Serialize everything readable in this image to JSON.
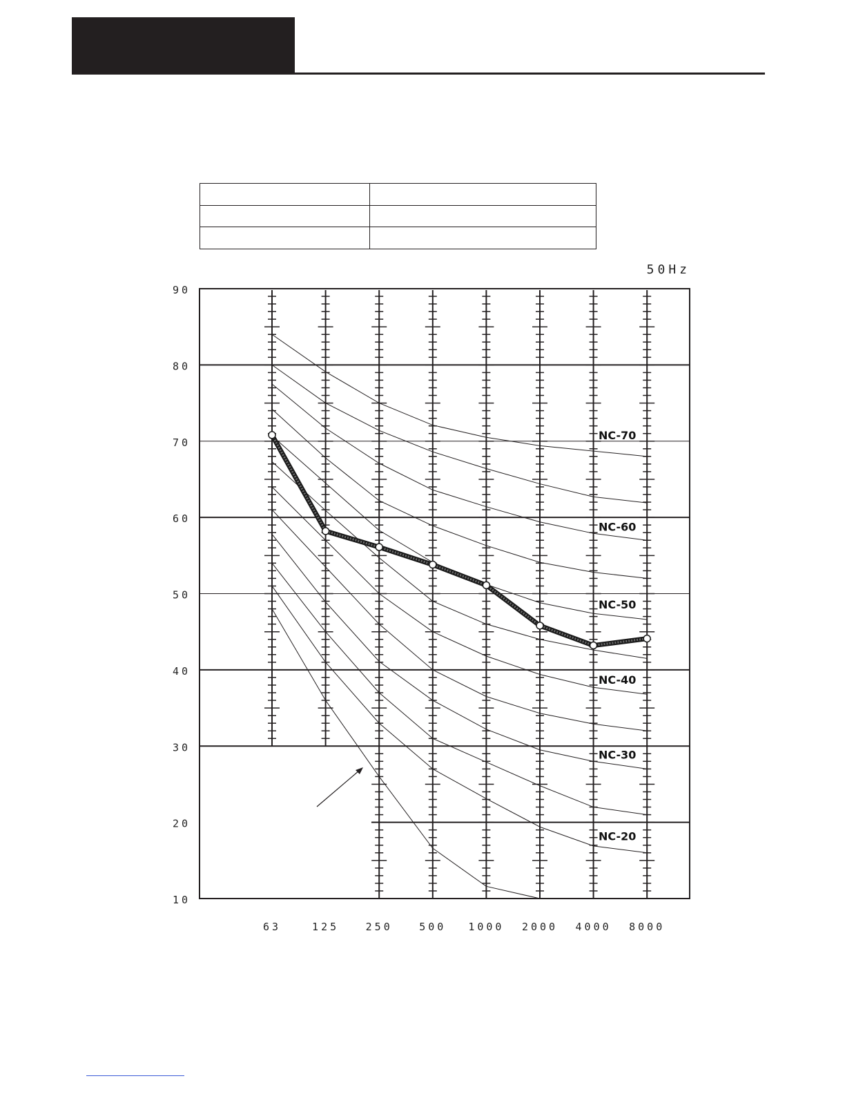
{
  "page": {
    "header_block_color": "#231f20",
    "table": {
      "rows": [
        [
          "",
          ""
        ],
        [
          "",
          ""
        ],
        [
          "",
          ""
        ]
      ]
    },
    "frequency_label": "50Hz"
  },
  "chart_data": {
    "type": "line",
    "title": "",
    "xlabel": "",
    "ylabel": "",
    "ylim": [
      10,
      90
    ],
    "y_ticks": [
      "90",
      "80",
      "70",
      "60",
      "50",
      "40",
      "30",
      "20",
      "10"
    ],
    "categories": [
      "63",
      "125",
      "250",
      "500",
      "1000",
      "2000",
      "4000",
      "8000"
    ],
    "grid": true,
    "series": [
      {
        "values": [
          70.8,
          58.2,
          56.1,
          53.8,
          51.1,
          45.8,
          43.2,
          44.1
        ],
        "color": "#333333",
        "emphasis": true
      }
    ],
    "nc_curves": [
      {
        "values": [
          84,
          79.1,
          75,
          72.1,
          70.5,
          69.4,
          68.7,
          68
        ]
      },
      {
        "values": [
          80,
          75,
          71.4,
          68.6,
          66.4,
          64.4,
          62.7,
          61.9
        ]
      },
      {
        "values": [
          77.5,
          71.7,
          67.1,
          63.6,
          61.4,
          59.4,
          57.9,
          57
        ]
      },
      {
        "values": [
          74.2,
          67.8,
          62.2,
          58.9,
          56.3,
          54.1,
          52.8,
          52
        ]
      },
      {
        "values": [
          70.7,
          64.5,
          58.3,
          54.1,
          51.2,
          48.8,
          47.4,
          46.6
        ]
      },
      {
        "values": [
          67.3,
          60.9,
          54.7,
          49,
          46,
          44,
          42.6,
          41.5
        ]
      },
      {
        "values": [
          64,
          57,
          50,
          45,
          41.8,
          39.4,
          37.7,
          36.8
        ]
      },
      {
        "values": [
          61,
          53.5,
          46,
          40,
          36.5,
          34.3,
          32.9,
          32
        ]
      },
      {
        "values": [
          57.8,
          48.9,
          41.1,
          36,
          32.2,
          29.5,
          28,
          27
        ]
      },
      {
        "values": [
          54,
          45,
          37,
          31,
          27.9,
          24.8,
          22,
          21
        ]
      },
      {
        "values": [
          51,
          41,
          33,
          27,
          23.1,
          19.4,
          16.9,
          16
        ]
      },
      {
        "values": [
          48,
          36,
          26,
          16.6,
          11.6,
          10,
          null,
          null
        ]
      }
    ],
    "nc_labels": [
      {
        "text": "NC-70",
        "y": 70.8
      },
      {
        "text": "NC-60",
        "y": 58.8
      },
      {
        "text": "NC-50",
        "y": 48.6
      },
      {
        "text": "NC-40",
        "y": 38.7
      },
      {
        "text": "NC-30",
        "y": 28.9
      },
      {
        "text": "NC-20",
        "y": 18.2
      }
    ],
    "annotations": [
      {
        "type": "arrow",
        "note": "arrow pointing to the lowest NC curve"
      }
    ]
  }
}
